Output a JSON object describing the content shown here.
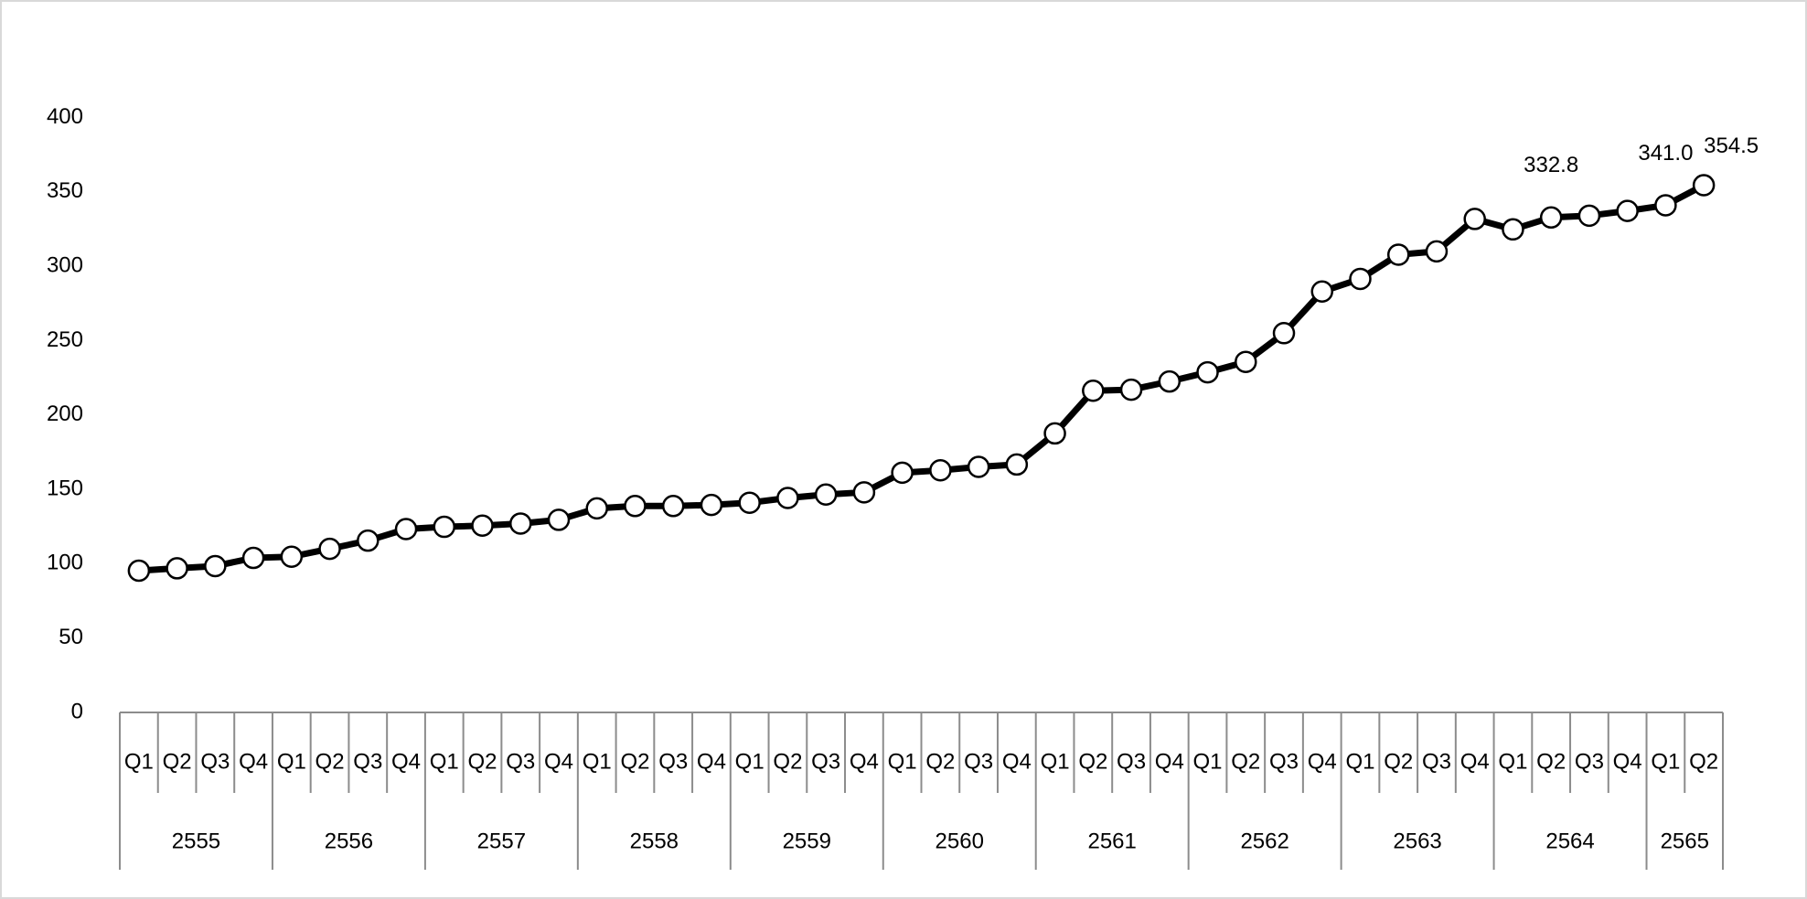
{
  "chart_data": {
    "type": "line",
    "groups": [
      {
        "label": "2555",
        "categories": [
          "Q1",
          "Q2",
          "Q3",
          "Q4"
        ]
      },
      {
        "label": "2556",
        "categories": [
          "Q1",
          "Q2",
          "Q3",
          "Q4"
        ]
      },
      {
        "label": "2557",
        "categories": [
          "Q1",
          "Q2",
          "Q3",
          "Q4"
        ]
      },
      {
        "label": "2558",
        "categories": [
          "Q1",
          "Q2",
          "Q3",
          "Q4"
        ]
      },
      {
        "label": "2559",
        "categories": [
          "Q1",
          "Q2",
          "Q3",
          "Q4"
        ]
      },
      {
        "label": "2560",
        "categories": [
          "Q1",
          "Q2",
          "Q3",
          "Q4"
        ]
      },
      {
        "label": "2561",
        "categories": [
          "Q1",
          "Q2",
          "Q3",
          "Q4"
        ]
      },
      {
        "label": "2562",
        "categories": [
          "Q1",
          "Q2",
          "Q3",
          "Q4"
        ]
      },
      {
        "label": "2563",
        "categories": [
          "Q1",
          "Q2",
          "Q3",
          "Q4"
        ]
      },
      {
        "label": "2564",
        "categories": [
          "Q1",
          "Q2",
          "Q3",
          "Q4"
        ]
      },
      {
        "label": "2565",
        "categories": [
          "Q1",
          "Q2"
        ]
      }
    ],
    "values": [
      95.3,
      96.9,
      98.4,
      103.9,
      104.7,
      110,
      115.5,
      123.3,
      124.8,
      125.6,
      127,
      129.5,
      137.2,
      138.8,
      138.8,
      139.5,
      141,
      144.2,
      146.5,
      148,
      161.2,
      162.8,
      165.1,
      166.7,
      187.6,
      216.3,
      217,
      222.5,
      228.7,
      235.7,
      255,
      283,
      291.5,
      307.8,
      310,
      331.8,
      324.8,
      332.8,
      334,
      337.2,
      341.0,
      354.5
    ],
    "value_labels": [
      null,
      null,
      null,
      null,
      null,
      null,
      null,
      null,
      null,
      null,
      null,
      null,
      null,
      null,
      null,
      null,
      null,
      null,
      null,
      null,
      null,
      null,
      null,
      null,
      null,
      null,
      null,
      null,
      null,
      null,
      null,
      null,
      null,
      null,
      null,
      null,
      null,
      "332.8",
      null,
      null,
      "341.0",
      "354.5"
    ],
    "color": "#000000",
    "ylim": [
      0,
      400
    ],
    "yticks": [
      0,
      50,
      100,
      150,
      200,
      250,
      300,
      350,
      400
    ],
    "grid": false
  }
}
